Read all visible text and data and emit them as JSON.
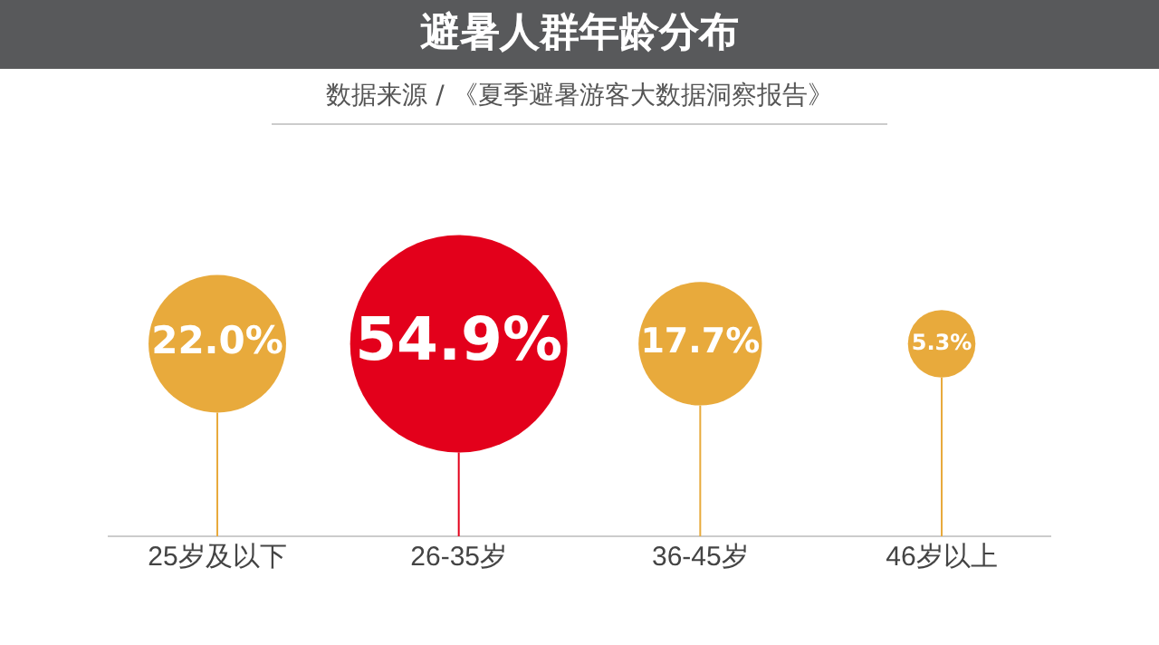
{
  "chart_data": {
    "type": "other",
    "title": "避暑人群年龄分布",
    "subtitle": "数据来源 / 《夏季避暑游客大数据洞察报告》",
    "categories": [
      "25岁及以下",
      "26-35岁",
      "36-45岁",
      "46岁以上"
    ],
    "values": [
      22.0,
      54.9,
      17.7,
      5.3
    ],
    "value_labels": [
      "22.0%",
      "54.9%",
      "17.7%",
      "5.3%"
    ],
    "colors": [
      "#e8aa3c",
      "#e3001b",
      "#e8aa3c",
      "#e8aa3c"
    ],
    "legend": false
  }
}
